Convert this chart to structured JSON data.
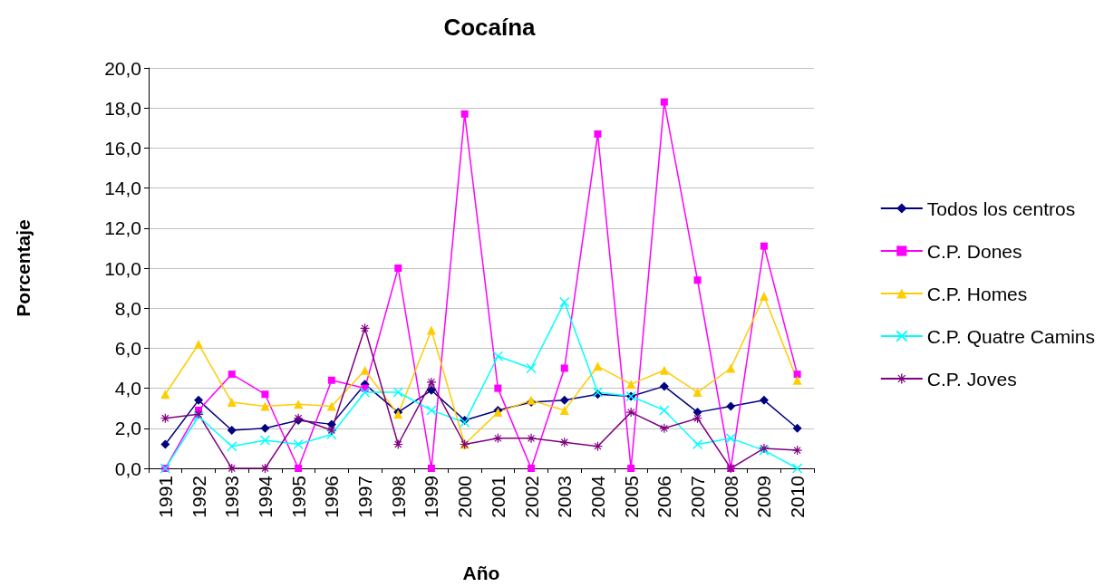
{
  "chart_data": {
    "type": "line",
    "title": "Cocaína",
    "xlabel": "Año",
    "ylabel": "Porcentaje",
    "categories": [
      "1991",
      "1992",
      "1993",
      "1994",
      "1995",
      "1996",
      "1997",
      "1998",
      "1999",
      "2000",
      "2001",
      "2002",
      "2003",
      "2004",
      "2005",
      "2006",
      "2007",
      "2008",
      "2009",
      "2010"
    ],
    "ylim": [
      0,
      20
    ],
    "yticks": [
      {
        "value": 0,
        "label": "0,0"
      },
      {
        "value": 2,
        "label": "2,0"
      },
      {
        "value": 4,
        "label": "4,0"
      },
      {
        "value": 6,
        "label": "6,0"
      },
      {
        "value": 8,
        "label": "8,0"
      },
      {
        "value": 10,
        "label": "10,0"
      },
      {
        "value": 12,
        "label": "12,0"
      },
      {
        "value": 14,
        "label": "14,0"
      },
      {
        "value": 16,
        "label": "16,0"
      },
      {
        "value": 18,
        "label": "18,0"
      },
      {
        "value": 20,
        "label": "20,0"
      }
    ],
    "grid": "y",
    "legend": "right",
    "series": [
      {
        "name": "Todos los centros",
        "color": "#000080",
        "marker": "diamond",
        "values": [
          1.2,
          3.4,
          1.9,
          2.0,
          2.4,
          2.2,
          4.2,
          2.8,
          3.9,
          2.4,
          2.9,
          3.3,
          3.4,
          3.7,
          3.6,
          4.1,
          2.8,
          3.1,
          3.4,
          2.0
        ]
      },
      {
        "name": "C.P. Dones",
        "color": "#ff00ff",
        "marker": "square",
        "values": [
          0,
          2.9,
          4.7,
          3.7,
          0,
          4.4,
          4.0,
          10.0,
          0,
          17.7,
          4.0,
          0,
          5.0,
          16.7,
          0,
          18.3,
          9.4,
          0,
          11.1,
          4.7
        ]
      },
      {
        "name": "C.P. Homes",
        "color": "#ffcc00",
        "marker": "triangle",
        "values": [
          3.7,
          6.2,
          3.3,
          3.1,
          3.2,
          3.1,
          4.9,
          2.7,
          6.9,
          1.2,
          2.8,
          3.4,
          2.9,
          5.1,
          4.2,
          4.9,
          3.8,
          5.0,
          8.6,
          4.4
        ]
      },
      {
        "name": "C.P. Quatre Camins",
        "color": "#00ffff",
        "marker": "cross",
        "values": [
          0,
          2.6,
          1.1,
          1.4,
          1.2,
          1.7,
          3.8,
          3.8,
          2.9,
          2.3,
          5.6,
          5.0,
          8.3,
          3.8,
          3.6,
          2.9,
          1.2,
          1.5,
          0.9,
          0
        ]
      },
      {
        "name": "C.P. Joves",
        "color": "#800080",
        "marker": "star",
        "values": [
          2.5,
          2.7,
          0,
          0,
          2.5,
          1.9,
          7.0,
          1.2,
          4.3,
          1.2,
          1.5,
          1.5,
          1.3,
          1.1,
          2.8,
          2.0,
          2.5,
          0,
          1.0,
          0.9
        ]
      }
    ]
  }
}
